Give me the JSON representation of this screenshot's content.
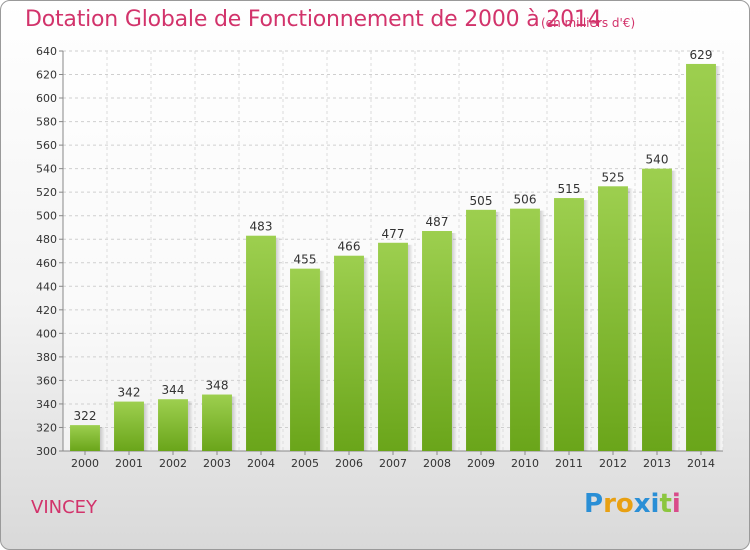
{
  "title": "Dotation Globale de Fonctionnement de 2000 à 2014",
  "subtitle": "(en milliers d'€)",
  "location": "VINCEY",
  "logo": {
    "text": "Proxiti",
    "letters": [
      "P",
      "r",
      "o",
      "x",
      "i",
      "t",
      "i"
    ],
    "colors": [
      "#2a8fd6",
      "#e8a012",
      "#e8a012",
      "#2a8fd6",
      "#2a8fd6",
      "#8cc63f",
      "#d94b8a"
    ]
  },
  "colors": {
    "bar_top": "#9dcf4f",
    "bar_bottom": "#6aa51a",
    "accent": "#d2336b"
  },
  "chart_data": {
    "type": "bar",
    "categories": [
      "2000",
      "2001",
      "2002",
      "2003",
      "2004",
      "2005",
      "2006",
      "2007",
      "2008",
      "2009",
      "2010",
      "2011",
      "2012",
      "2013",
      "2014"
    ],
    "values": [
      322,
      342,
      344,
      348,
      483,
      455,
      466,
      477,
      487,
      505,
      506,
      515,
      525,
      540,
      629
    ],
    "y_ticks": [
      300,
      320,
      340,
      360,
      380,
      400,
      420,
      440,
      460,
      480,
      500,
      520,
      540,
      560,
      580,
      600,
      620,
      640
    ],
    "ylim": [
      300,
      640
    ],
    "grid": true
  }
}
